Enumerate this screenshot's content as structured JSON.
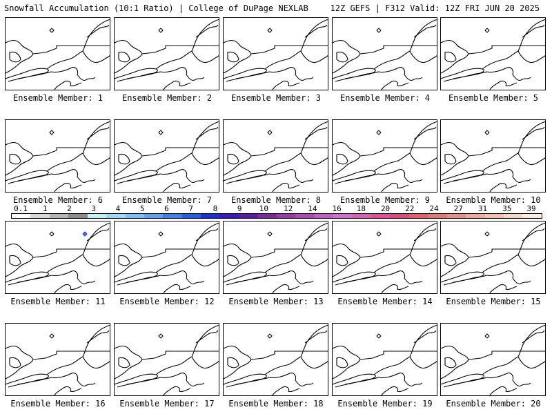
{
  "header": {
    "left": "Snowfall Accumulation (10:1 Ratio) | College of DuPage NEXLAB",
    "right": "12Z GEFS | F312 Valid: 12Z FRI JUN 20 2025"
  },
  "panels": [
    {
      "label": "Ensemble Member: 1"
    },
    {
      "label": "Ensemble Member: 2"
    },
    {
      "label": "Ensemble Member: 3"
    },
    {
      "label": "Ensemble Member: 4"
    },
    {
      "label": "Ensemble Member: 5"
    },
    {
      "label": "Ensemble Member: 6"
    },
    {
      "label": "Ensemble Member: 7"
    },
    {
      "label": "Ensemble Member: 8"
    },
    {
      "label": "Ensemble Member: 9"
    },
    {
      "label": "Ensemble Member: 10"
    },
    {
      "label": "Ensemble Member: 11"
    },
    {
      "label": "Ensemble Member: 12"
    },
    {
      "label": "Ensemble Member: 13"
    },
    {
      "label": "Ensemble Member: 14"
    },
    {
      "label": "Ensemble Member: 15"
    },
    {
      "label": "Ensemble Member: 16"
    },
    {
      "label": "Ensemble Member: 17"
    },
    {
      "label": "Ensemble Member: 18"
    },
    {
      "label": "Ensemble Member: 19"
    },
    {
      "label": "Ensemble Member: 20"
    }
  ],
  "legend": {
    "ticks": [
      "0.1",
      "1",
      "2",
      "3",
      "4",
      "5",
      "6",
      "7",
      "8",
      "9",
      "10",
      "12",
      "14",
      "16",
      "18",
      "20",
      "22",
      "24",
      "27",
      "31",
      "35",
      "39"
    ],
    "colors": [
      "#ffffff",
      "#d9d9d9",
      "#b3b3b3",
      "#8c8c8c",
      "#c0f0f0",
      "#9fd8f5",
      "#7fbff5",
      "#5fa0f0",
      "#3f7fe8",
      "#1f5fe0",
      "#1a2fd8",
      "#3a1ac0",
      "#5a1aa8",
      "#7a2a98",
      "#9a3aa8",
      "#b04ab8",
      "#c060c8",
      "#d070d0",
      "#d860b0",
      "#e0509a",
      "#d84a80",
      "#e06070",
      "#e47878",
      "#e89088",
      "#ecaaa0",
      "#f0c0b0",
      "#f5d8c8",
      "#faf0e0"
    ]
  },
  "colors": {
    "frame": "#000000",
    "coast": "#000000",
    "snow_marker": "#3f7fe8"
  }
}
